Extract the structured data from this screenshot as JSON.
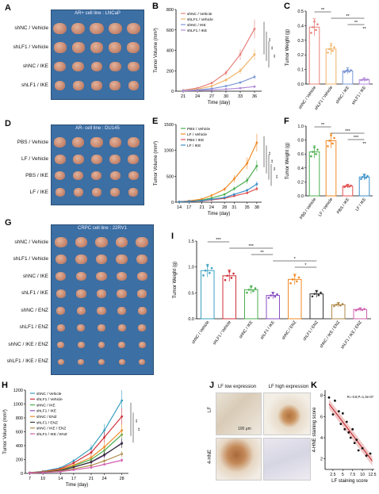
{
  "panels": {
    "A": {
      "letter": "A",
      "caption": "AR+ cell line : LNCaP",
      "rows": [
        "shNC / Vehicle",
        "shLF1 / Vehicle",
        "shNC / IKE",
        "shLF1 / IKE"
      ]
    },
    "D": {
      "letter": "D",
      "caption": "AR- cell line : DU145",
      "rows": [
        "PBS / Vehicle",
        "LF / Vehicle",
        "PBS / IKE",
        "LF / IKE"
      ]
    },
    "G": {
      "letter": "G",
      "caption": "CRPC cell line : 22RV1",
      "rows": [
        "shNC / Vehicle",
        "shLF1 / Vehicle",
        "shNC / IKE",
        "shLF1 / IKE",
        "shNC / ENZ",
        "shLF1 / ENZ",
        "shNC / IKE / ENZ",
        "shLF1 / IKE / ENZ"
      ]
    },
    "J": {
      "letter": "J",
      "col_labels": [
        "LF low expression",
        "LF high expression"
      ],
      "row_labels": [
        "LF",
        "4-HNE"
      ],
      "scale_label": "100 μm"
    }
  },
  "colors": {
    "photo_bg": "#3c6fa3",
    "tumor": "#c98b73",
    "tumor_dark": "#a86a58"
  },
  "chart_data": [
    {
      "id": "B",
      "letter": "B",
      "type": "line",
      "ylabel": "Tumor Volume (mm³)",
      "xlabel": "Time (day)",
      "x": [
        21,
        24,
        27,
        30,
        33,
        36
      ],
      "xlim": [
        19.5,
        37.5
      ],
      "ylim": [
        0,
        800
      ],
      "yticks": [
        0,
        200,
        400,
        600,
        800
      ],
      "series": [
        {
          "name": "shNC / Vehicle",
          "color": "#e8807a",
          "values": [
            10,
            30,
            80,
            180,
            360,
            610
          ]
        },
        {
          "name": "shLF1 / Vehicle",
          "color": "#f0b46a",
          "values": [
            8,
            20,
            50,
            110,
            200,
            360
          ]
        },
        {
          "name": "shNC / IKE",
          "color": "#7b97d6",
          "values": [
            6,
            12,
            25,
            50,
            85,
            140
          ]
        },
        {
          "name": "shLF1 / IKE",
          "color": "#b08ad8",
          "values": [
            4,
            8,
            12,
            20,
            30,
            45
          ]
        }
      ],
      "sig": [
        "**",
        "**",
        "**"
      ]
    },
    {
      "id": "C",
      "letter": "C",
      "type": "bar",
      "ylabel": "Tumor Weight (g)",
      "categories": [
        "shNC / Vehicle",
        "shLF1 / Vehicle",
        "shNC / IKE",
        "shLF1 / IKE"
      ],
      "values": [
        0.39,
        0.24,
        0.09,
        0.03
      ],
      "colors": [
        "#e8807a",
        "#f0b46a",
        "#7b97d6",
        "#b08ad8"
      ],
      "ylim": [
        0,
        0.5
      ],
      "yticks": [
        0.0,
        0.1,
        0.2,
        0.3,
        0.4,
        0.5
      ],
      "sig": [
        "**",
        "**",
        "**",
        "**"
      ]
    },
    {
      "id": "E",
      "letter": "E",
      "type": "line",
      "ylabel": "Tumor Volume (mm³)",
      "xlabel": "Time (day)",
      "x": [
        14,
        17,
        21,
        24,
        28,
        31,
        35,
        38
      ],
      "xlim": [
        13,
        39.5
      ],
      "ylim": [
        0,
        1500
      ],
      "yticks": [
        0,
        500,
        1000,
        1500
      ],
      "series": [
        {
          "name": "PBS / Vehicle",
          "color": "#4caf50",
          "values": [
            10,
            20,
            40,
            80,
            150,
            260,
            420,
            700
          ]
        },
        {
          "name": "LF / Vehicle",
          "color": "#f08a24",
          "values": [
            10,
            25,
            60,
            130,
            250,
            450,
            750,
            1150
          ]
        },
        {
          "name": "PBS / IKE",
          "color": "#e05050",
          "values": [
            8,
            15,
            25,
            45,
            75,
            120,
            180,
            260
          ]
        },
        {
          "name": "LF / IKE",
          "color": "#3a8fc8",
          "values": [
            8,
            15,
            30,
            55,
            90,
            150,
            230,
            350
          ]
        }
      ],
      "sig": [
        "**",
        "**",
        "**",
        "**"
      ]
    },
    {
      "id": "F",
      "letter": "F",
      "type": "bar",
      "ylabel": "Tumor Weight (g)",
      "categories": [
        "PBS / Vehicle",
        "LF / Vehicle",
        "PBS / IKE",
        "LF / IKE"
      ],
      "values": [
        0.63,
        0.79,
        0.14,
        0.27
      ],
      "colors": [
        "#4caf50",
        "#f08a24",
        "#e05050",
        "#3a8fc8"
      ],
      "ylim": [
        0,
        1.0
      ],
      "yticks": [
        0.0,
        0.2,
        0.4,
        0.6,
        0.8,
        1.0
      ],
      "sig": [
        "**",
        "***",
        "***",
        "**"
      ]
    },
    {
      "id": "I",
      "letter": "I",
      "type": "bar",
      "ylabel": "Tumor Weight (g)",
      "categories": [
        "shNC / Vehicle",
        "shLF1 / Vehicle",
        "shNC / IKE",
        "shLF1 / IKE",
        "shNC / ENZ",
        "shLF1 / ENZ",
        "shNC / IKE / ENZ",
        "shLF1 / IKE / ENZ"
      ],
      "values": [
        0.93,
        0.83,
        0.56,
        0.45,
        0.76,
        0.48,
        0.27,
        0.18
      ],
      "colors": [
        "#3aa0c0",
        "#d0303a",
        "#4caf50",
        "#8a4fc0",
        "#f08a24",
        "#333333",
        "#b08a4a",
        "#d060b0"
      ],
      "ylim": [
        0,
        1.5
      ],
      "yticks": [
        0.0,
        0.5,
        1.0,
        1.5
      ],
      "sig": [
        "***",
        "***",
        "**",
        "*",
        "*"
      ]
    },
    {
      "id": "H",
      "letter": "H",
      "type": "line",
      "ylabel": "Tumor Volume (mm³)",
      "xlabel": "Time (day)",
      "x": [
        7,
        10,
        14,
        17,
        21,
        24,
        28
      ],
      "xlim": [
        6,
        29.5
      ],
      "ylim": [
        0,
        1200
      ],
      "yticks": [
        0,
        200,
        400,
        600,
        800,
        1000,
        1200
      ],
      "series": [
        {
          "name": "shNC / Vehicle",
          "color": "#3aa0c0",
          "values": [
            10,
            30,
            80,
            180,
            360,
            620,
            1050
          ]
        },
        {
          "name": "shLF1 / Vehicle",
          "color": "#d0303a",
          "values": [
            10,
            25,
            65,
            150,
            300,
            520,
            820
          ]
        },
        {
          "name": "shNC / IKE",
          "color": "#4caf50",
          "values": [
            8,
            20,
            50,
            110,
            200,
            330,
            560
          ]
        },
        {
          "name": "shLF1 / IKE",
          "color": "#8a4fc0",
          "values": [
            8,
            18,
            40,
            90,
            160,
            260,
            440
          ]
        },
        {
          "name": "shNC / ENZ",
          "color": "#f08a24",
          "values": [
            9,
            22,
            55,
            120,
            230,
            380,
            620
          ]
        },
        {
          "name": "shLF1 / ENZ",
          "color": "#333333",
          "values": [
            8,
            18,
            42,
            90,
            165,
            270,
            430
          ]
        },
        {
          "name": "shNC / IKE / ENZ",
          "color": "#b08a4a",
          "values": [
            7,
            15,
            32,
            65,
            115,
            180,
            280
          ]
        },
        {
          "name": "shLF1 / IKE / ENZ",
          "color": "#d060b0",
          "values": [
            6,
            12,
            25,
            50,
            85,
            130,
            190
          ]
        }
      ],
      "sig": [
        "**",
        "**"
      ]
    },
    {
      "id": "K",
      "letter": "K",
      "type": "scatter",
      "ylabel": "4-HNE staining score",
      "xlabel": "LF staining score",
      "annotation": "R=-0.8,P=1.3e-07",
      "x": [
        1.5,
        2.5,
        3,
        4,
        4.5,
        5,
        5.5,
        6,
        6.5,
        7,
        7.5,
        8,
        8.5,
        9,
        10,
        11,
        12
      ],
      "y": [
        7.8,
        6.2,
        7.5,
        6.5,
        5.3,
        6.3,
        4.8,
        5.5,
        4.5,
        4.0,
        4.8,
        3.5,
        3.8,
        2.8,
        3.0,
        2.3,
        2.5
      ],
      "fit": [
        [
          1.5,
          7.2
        ],
        [
          12.5,
          1.8
        ]
      ],
      "xlim": [
        0.5,
        13
      ],
      "ylim": [
        1,
        8.5
      ],
      "xticks": [
        2.5,
        5,
        7.5,
        10,
        12.5
      ],
      "xtick_labels": [
        "2.5",
        "5",
        "7.5",
        "10",
        "12.5"
      ],
      "yticks": [
        2,
        4,
        6,
        8
      ]
    }
  ]
}
